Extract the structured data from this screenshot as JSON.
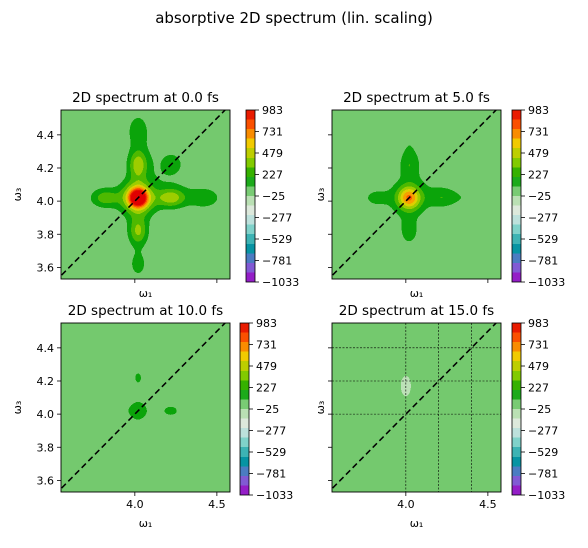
{
  "figure": {
    "suptitle": "absorptive 2D spectrum (lin. scaling)"
  },
  "colormap": {
    "name": "spectral-like diverging",
    "stops": [
      "#9e00c0",
      "#7b6cd8",
      "#0096a0",
      "#7ad0c8",
      "#e8ece8",
      "#a8dca0",
      "#00a000",
      "#8acc00",
      "#f0d000",
      "#ff6000",
      "#e00000"
    ],
    "background": "#e8ece8"
  },
  "chart_data": [
    {
      "type": "heatmap",
      "title": "2D spectrum at 0.0 fs",
      "t2_fs": 0.0,
      "xlabel": "ω₁",
      "ylabel": "ω₃",
      "xlim": [
        3.55,
        4.58
      ],
      "ylim": [
        3.53,
        4.55
      ],
      "xticks": [
        4.0,
        4.5
      ],
      "xticklabels_shown": false,
      "yticks": [
        3.6,
        3.8,
        4.0,
        4.2,
        4.4
      ],
      "yticklabels": [
        "3.6",
        "3.8",
        "4.0",
        "4.2",
        "4.4"
      ],
      "yticklabels_shown": true,
      "diagonal": true,
      "grid": false,
      "colorbar_ticks": [
        983,
        731,
        479,
        227,
        -25,
        -277,
        -529,
        -781,
        -1033
      ],
      "colorbar_range": [
        -1033,
        983
      ],
      "peaks": [
        {
          "w1": 4.02,
          "w3": 4.02,
          "amp": 983,
          "sx": 0.035,
          "sy": 0.035
        },
        {
          "w1": 4.02,
          "w3": 4.02,
          "amp": 650,
          "sx": 0.07,
          "sy": 0.07
        },
        {
          "w1": 4.22,
          "w3": 4.02,
          "amp": 430,
          "sx": 0.06,
          "sy": 0.04
        },
        {
          "w1": 4.02,
          "w3": 4.22,
          "amp": 430,
          "sx": 0.04,
          "sy": 0.06
        },
        {
          "w1": 4.02,
          "w3": 3.82,
          "amp": 380,
          "sx": 0.04,
          "sy": 0.06
        },
        {
          "w1": 3.82,
          "w3": 4.02,
          "amp": 300,
          "sx": 0.06,
          "sy": 0.04
        },
        {
          "w1": 4.42,
          "w3": 4.02,
          "amp": 170,
          "sx": 0.08,
          "sy": 0.05
        },
        {
          "w1": 4.02,
          "w3": 4.42,
          "amp": 170,
          "sx": 0.05,
          "sy": 0.08
        },
        {
          "w1": 4.02,
          "w3": 3.62,
          "amp": 150,
          "sx": 0.04,
          "sy": 0.06
        },
        {
          "w1": 4.22,
          "w3": 4.22,
          "amp": 120,
          "sx": 0.1,
          "sy": 0.1
        }
      ]
    },
    {
      "type": "heatmap",
      "title": "2D spectrum at 5.0 fs",
      "t2_fs": 5.0,
      "xlabel": "ω₁",
      "ylabel": "ω₃",
      "xlim": [
        3.55,
        4.58
      ],
      "ylim": [
        3.53,
        4.55
      ],
      "xticks": [
        4.0,
        4.5
      ],
      "xticklabels_shown": false,
      "yticks": [
        3.6,
        3.8,
        4.0,
        4.2,
        4.4
      ],
      "yticklabels_shown": false,
      "diagonal": true,
      "grid": false,
      "colorbar_ticks": [
        983,
        731,
        479,
        227,
        -25,
        -277,
        -529,
        -781,
        -1033
      ],
      "colorbar_range": [
        -1033,
        983
      ],
      "peaks": [
        {
          "w1": 4.02,
          "w3": 4.02,
          "amp": 520,
          "sx": 0.045,
          "sy": 0.045
        },
        {
          "w1": 4.02,
          "w3": 4.02,
          "amp": 250,
          "sx": 0.08,
          "sy": 0.08
        },
        {
          "w1": 4.22,
          "w3": 4.02,
          "amp": 200,
          "sx": 0.06,
          "sy": 0.04
        },
        {
          "w1": 4.02,
          "w3": 4.22,
          "amp": 200,
          "sx": 0.04,
          "sy": 0.06
        },
        {
          "w1": 4.02,
          "w3": 3.82,
          "amp": 170,
          "sx": 0.04,
          "sy": 0.06
        },
        {
          "w1": 3.82,
          "w3": 4.02,
          "amp": 140,
          "sx": 0.06,
          "sy": 0.04
        },
        {
          "w1": 4.4,
          "w3": 4.02,
          "amp": 90,
          "sx": 0.08,
          "sy": 0.05
        },
        {
          "w1": 4.02,
          "w3": 4.4,
          "amp": 90,
          "sx": 0.05,
          "sy": 0.08
        },
        {
          "w1": 4.22,
          "w3": 4.22,
          "amp": 70,
          "sx": 0.1,
          "sy": 0.1
        }
      ]
    },
    {
      "type": "heatmap",
      "title": "2D spectrum at 10.0 fs",
      "t2_fs": 10.0,
      "xlabel": "ω₁",
      "ylabel": "ω₃",
      "xlim": [
        3.55,
        4.58
      ],
      "ylim": [
        3.53,
        4.55
      ],
      "xticks": [
        4.0,
        4.5
      ],
      "xticklabels": [
        "4.0",
        "4.5"
      ],
      "xticklabels_shown": true,
      "yticks": [
        3.6,
        3.8,
        4.0,
        4.2,
        4.4
      ],
      "yticklabels": [
        "3.6",
        "3.8",
        "4.0",
        "4.2",
        "4.4"
      ],
      "yticklabels_shown": true,
      "diagonal": true,
      "grid": false,
      "colorbar_ticks": [
        983,
        731,
        479,
        227,
        -25,
        -277,
        -529,
        -781,
        -1033
      ],
      "colorbar_range": [
        -1033,
        983
      ],
      "peaks": [
        {
          "w1": 4.02,
          "w3": 4.02,
          "amp": 140,
          "sx": 0.06,
          "sy": 0.06
        },
        {
          "w1": 4.22,
          "w3": 4.02,
          "amp": 120,
          "sx": 0.06,
          "sy": 0.04
        },
        {
          "w1": 4.02,
          "w3": 4.22,
          "amp": 110,
          "sx": 0.04,
          "sy": 0.06
        },
        {
          "w1": 4.02,
          "w3": 3.82,
          "amp": 90,
          "sx": 0.04,
          "sy": 0.06
        },
        {
          "w1": 3.85,
          "w3": 4.02,
          "amp": 80,
          "sx": 0.06,
          "sy": 0.04
        }
      ]
    },
    {
      "type": "heatmap",
      "title": "2D spectrum at 15.0 fs",
      "t2_fs": 15.0,
      "xlabel": "ω₁",
      "ylabel": "ω₃",
      "xlim": [
        3.55,
        4.58
      ],
      "ylim": [
        3.53,
        4.55
      ],
      "xticks": [
        4.0,
        4.5
      ],
      "xticklabels": [
        "4.0",
        "4.5"
      ],
      "xticklabels_shown": true,
      "yticks": [
        3.6,
        3.8,
        4.0,
        4.2,
        4.4
      ],
      "yticklabels_shown": false,
      "diagonal": true,
      "grid": true,
      "grid_x": [
        4.0,
        4.2,
        4.4
      ],
      "grid_y": [
        4.0,
        4.2,
        4.4
      ],
      "colorbar_ticks": [
        983,
        731,
        479,
        227,
        -25,
        -277,
        -529,
        -781,
        -1033
      ],
      "colorbar_range": [
        -1033,
        983
      ],
      "peaks": [
        {
          "w1": 4.0,
          "w3": 4.17,
          "amp": -80,
          "sx": 0.02,
          "sy": 0.04
        },
        {
          "w1": 4.22,
          "w3": 4.02,
          "amp": 70,
          "sx": 0.04,
          "sy": 0.025
        },
        {
          "w1": 4.02,
          "w3": 3.83,
          "amp": 65,
          "sx": 0.02,
          "sy": 0.04
        }
      ]
    }
  ]
}
